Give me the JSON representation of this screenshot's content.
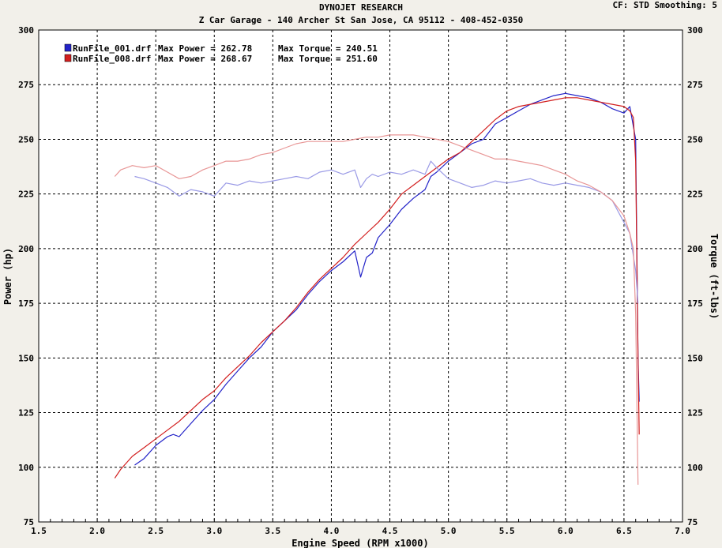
{
  "header": {
    "title": "DYNOJET RESEARCH",
    "subtitle": "Z Car Garage - 140 Archer St San Jose, CA 95112 - 408-452-0350",
    "settings": "CF: STD  Smoothing: 5"
  },
  "chart_data": {
    "type": "line",
    "xlabel": "Engine Speed (RPM x1000)",
    "ylabel": "Power (hp)",
    "y2label": "Torque (ft-lbs)",
    "xlim": [
      1.5,
      7.0
    ],
    "ylim": [
      75,
      300
    ],
    "y2lim": [
      75,
      300
    ],
    "xticks": [
      "1.5",
      "2.0",
      "2.5",
      "3.0",
      "3.5",
      "4.0",
      "4.5",
      "5.0",
      "5.5",
      "6.0",
      "6.5",
      "7.0"
    ],
    "yticks": [
      "75",
      "100",
      "125",
      "150",
      "175",
      "200",
      "225",
      "250",
      "275",
      "300"
    ],
    "grid": true,
    "legend_position": "top-left",
    "legend": [
      {
        "file": "RunFile_001.drf",
        "power_text": "Max Power = 262.78",
        "torque_text": "Max Torque = 240.51",
        "color": "#2323c8"
      },
      {
        "file": "RunFile_008.drf",
        "power_text": "Max Power = 268.67",
        "torque_text": "Max Torque = 251.60",
        "color": "#d21e1e"
      }
    ],
    "series": [
      {
        "name": "RunFile_001.drf",
        "kind": "power",
        "color": "#2323c8",
        "x": [
          2.32,
          2.4,
          2.5,
          2.6,
          2.65,
          2.7,
          2.8,
          2.9,
          3.0,
          3.1,
          3.2,
          3.3,
          3.4,
          3.5,
          3.6,
          3.7,
          3.8,
          3.9,
          4.0,
          4.1,
          4.2,
          4.25,
          4.3,
          4.35,
          4.4,
          4.5,
          4.6,
          4.7,
          4.8,
          4.85,
          4.9,
          5.0,
          5.1,
          5.2,
          5.3,
          5.4,
          5.5,
          5.6,
          5.7,
          5.8,
          5.9,
          6.0,
          6.1,
          6.2,
          6.3,
          6.4,
          6.5,
          6.55,
          6.6,
          6.62,
          6.63
        ],
        "y": [
          101,
          104,
          110,
          114,
          115,
          114,
          120,
          126,
          131,
          138,
          144,
          150,
          155,
          162,
          167,
          172,
          179,
          185,
          190,
          194,
          199,
          187,
          196,
          198,
          205,
          211,
          218,
          223,
          227,
          233,
          235,
          240,
          244,
          248,
          250,
          257,
          260,
          263,
          266,
          268,
          270,
          271,
          270,
          269,
          267,
          264,
          262,
          265,
          250,
          150,
          130
        ]
      },
      {
        "name": "RunFile_008.drf",
        "kind": "power",
        "color": "#d21e1e",
        "x": [
          2.15,
          2.2,
          2.3,
          2.4,
          2.5,
          2.6,
          2.7,
          2.8,
          2.9,
          3.0,
          3.1,
          3.2,
          3.3,
          3.4,
          3.5,
          3.6,
          3.7,
          3.8,
          3.9,
          4.0,
          4.1,
          4.2,
          4.3,
          4.4,
          4.5,
          4.6,
          4.7,
          4.8,
          4.9,
          5.0,
          5.1,
          5.2,
          5.3,
          5.4,
          5.5,
          5.6,
          5.7,
          5.8,
          5.9,
          6.0,
          6.1,
          6.2,
          6.3,
          6.4,
          6.5,
          6.55,
          6.58,
          6.6,
          6.62,
          6.63
        ],
        "y": [
          95,
          99,
          105,
          109,
          113,
          117,
          121,
          126,
          131,
          135,
          141,
          146,
          151,
          157,
          162,
          167,
          173,
          180,
          186,
          191,
          196,
          202,
          207,
          212,
          218,
          225,
          229,
          233,
          237,
          241,
          244,
          249,
          254,
          259,
          263,
          265,
          266,
          267,
          268,
          269,
          269,
          268,
          267,
          266,
          265,
          263,
          260,
          240,
          150,
          115
        ]
      },
      {
        "name": "RunFile_001.drf",
        "kind": "torque",
        "color": "#9a9ae6",
        "x": [
          2.32,
          2.4,
          2.5,
          2.6,
          2.7,
          2.8,
          2.9,
          3.0,
          3.1,
          3.2,
          3.3,
          3.4,
          3.5,
          3.6,
          3.7,
          3.8,
          3.9,
          4.0,
          4.1,
          4.2,
          4.25,
          4.3,
          4.35,
          4.4,
          4.5,
          4.6,
          4.7,
          4.8,
          4.85,
          4.9,
          5.0,
          5.1,
          5.2,
          5.3,
          5.4,
          5.5,
          5.6,
          5.7,
          5.8,
          5.9,
          6.0,
          6.1,
          6.2,
          6.3,
          6.4,
          6.5,
          6.55,
          6.6,
          6.62
        ],
        "y": [
          233,
          232,
          230,
          228,
          224,
          227,
          226,
          224,
          230,
          229,
          231,
          230,
          231,
          232,
          233,
          232,
          235,
          236,
          234,
          236,
          228,
          232,
          234,
          233,
          235,
          234,
          236,
          234,
          240,
          237,
          232,
          230,
          228,
          229,
          231,
          230,
          231,
          232,
          230,
          229,
          230,
          229,
          228,
          226,
          222,
          212,
          207,
          190,
          175
        ]
      },
      {
        "name": "RunFile_008.drf",
        "kind": "torque",
        "color": "#e89696",
        "x": [
          2.15,
          2.2,
          2.3,
          2.4,
          2.5,
          2.6,
          2.7,
          2.8,
          2.9,
          3.0,
          3.1,
          3.2,
          3.3,
          3.4,
          3.5,
          3.6,
          3.7,
          3.8,
          3.9,
          4.0,
          4.1,
          4.2,
          4.3,
          4.4,
          4.5,
          4.6,
          4.7,
          4.8,
          4.9,
          5.0,
          5.1,
          5.2,
          5.3,
          5.4,
          5.5,
          5.6,
          5.7,
          5.8,
          5.9,
          6.0,
          6.1,
          6.2,
          6.3,
          6.4,
          6.5,
          6.55,
          6.58,
          6.6,
          6.62
        ],
        "y": [
          233,
          236,
          238,
          237,
          238,
          235,
          232,
          233,
          236,
          238,
          240,
          240,
          241,
          243,
          244,
          246,
          248,
          249,
          249,
          249,
          249,
          250,
          251,
          251,
          252,
          252,
          252,
          251,
          250,
          249,
          247,
          245,
          243,
          241,
          241,
          240,
          239,
          238,
          236,
          234,
          231,
          229,
          226,
          222,
          215,
          207,
          200,
          170,
          92
        ]
      }
    ]
  }
}
